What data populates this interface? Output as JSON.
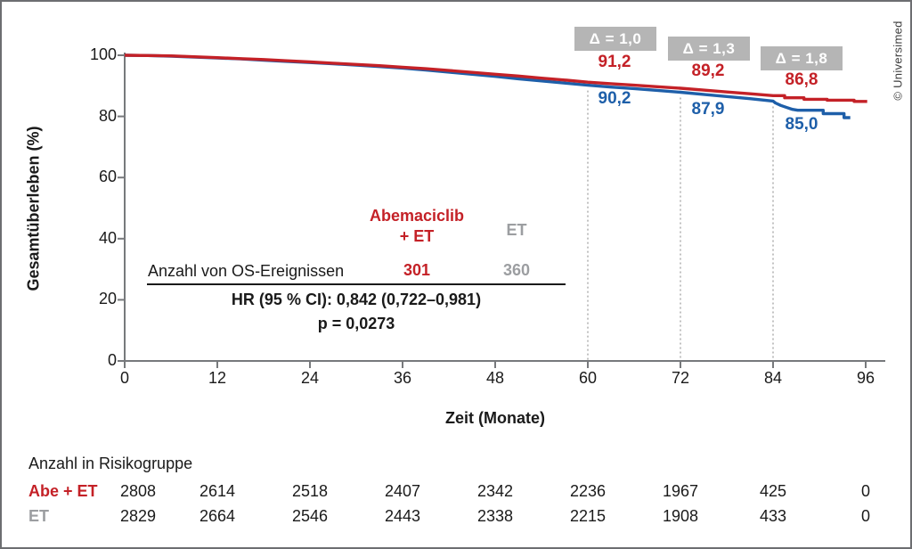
{
  "copyright_label": "© Universimed",
  "chart_data": {
    "type": "line",
    "subtype": "kaplan-meier",
    "title": "",
    "xlabel": "Zeit (Monate)",
    "ylabel": "Gesamtüberleben (%)",
    "xlim": [
      0,
      96
    ],
    "ylim": [
      0,
      100
    ],
    "x_ticks": [
      0,
      12,
      24,
      36,
      48,
      60,
      72,
      84,
      96
    ],
    "y_ticks": [
      0,
      20,
      40,
      60,
      80,
      100
    ],
    "grid": false,
    "legend_position": "none",
    "colors": {
      "abemaciclib": "#c42127",
      "et": "#1e5fa9",
      "muted_gray": "#9c9ea1",
      "delta_box_bg": "#b5b5b5",
      "axis": "#77797c",
      "dotted_line": "#a8a8a8"
    },
    "series": [
      {
        "name": "Abemaciclib + ET",
        "color_key": "abemaciclib",
        "points": [
          [
            0,
            100
          ],
          [
            3,
            99.9
          ],
          [
            6,
            99.8
          ],
          [
            9,
            99.5
          ],
          [
            12,
            99.2
          ],
          [
            15,
            98.9
          ],
          [
            18,
            98.6
          ],
          [
            21,
            98.2
          ],
          [
            24,
            97.8
          ],
          [
            27,
            97.4
          ],
          [
            30,
            97.0
          ],
          [
            33,
            96.6
          ],
          [
            36,
            96.1
          ],
          [
            39,
            95.6
          ],
          [
            42,
            95.0
          ],
          [
            45,
            94.4
          ],
          [
            48,
            93.8
          ],
          [
            51,
            93.2
          ],
          [
            54,
            92.5
          ],
          [
            57,
            91.9
          ],
          [
            60,
            91.2
          ],
          [
            63,
            90.7
          ],
          [
            66,
            90.2
          ],
          [
            69,
            89.7
          ],
          [
            72,
            89.2
          ],
          [
            75,
            88.6
          ],
          [
            78,
            88.0
          ],
          [
            81,
            87.4
          ],
          [
            84,
            86.8
          ],
          [
            85.5,
            86.8
          ],
          [
            85.5,
            86.1
          ],
          [
            88,
            86.1
          ],
          [
            88,
            85.6
          ],
          [
            91,
            85.6
          ],
          [
            91,
            85.3
          ],
          [
            94.5,
            85.3
          ],
          [
            94.5,
            84.9
          ],
          [
            96.2,
            84.9
          ]
        ]
      },
      {
        "name": "ET",
        "color_key": "et",
        "points": [
          [
            0,
            100
          ],
          [
            3,
            99.9
          ],
          [
            6,
            99.7
          ],
          [
            9,
            99.4
          ],
          [
            12,
            99.1
          ],
          [
            15,
            98.8
          ],
          [
            18,
            98.4
          ],
          [
            21,
            98.0
          ],
          [
            24,
            97.6
          ],
          [
            27,
            97.2
          ],
          [
            30,
            96.8
          ],
          [
            33,
            96.3
          ],
          [
            36,
            95.8
          ],
          [
            39,
            95.2
          ],
          [
            42,
            94.5
          ],
          [
            45,
            93.8
          ],
          [
            48,
            93.1
          ],
          [
            51,
            92.3
          ],
          [
            54,
            91.6
          ],
          [
            57,
            90.9
          ],
          [
            60,
            90.2
          ],
          [
            63,
            89.6
          ],
          [
            66,
            89.1
          ],
          [
            69,
            88.5
          ],
          [
            72,
            87.9
          ],
          [
            75,
            87.2
          ],
          [
            78,
            86.5
          ],
          [
            81,
            85.8
          ],
          [
            84,
            85.0
          ],
          [
            84.3,
            84.4
          ],
          [
            85,
            83.6
          ],
          [
            85.8,
            82.9
          ],
          [
            86.5,
            82.3
          ],
          [
            87.2,
            82.0
          ],
          [
            90.5,
            82.0
          ],
          [
            90.5,
            80.9
          ],
          [
            93.2,
            80.9
          ],
          [
            93.2,
            79.6
          ],
          [
            94,
            79.6
          ]
        ]
      }
    ],
    "annotations": [
      {
        "month": 60,
        "delta_label": "Δ = 1,0",
        "abemaciclib_value": "91,2",
        "et_value": "90,2"
      },
      {
        "month": 72,
        "delta_label": "Δ = 1,3",
        "abemaciclib_value": "89,2",
        "et_value": "87,9"
      },
      {
        "month": 84,
        "delta_label": "Δ = 1,8",
        "abemaciclib_value": "86,8",
        "et_value": "85,0"
      }
    ],
    "inset_stats": {
      "col_abemaciclib_header": "Abemaciclib + ET",
      "col_et_header": "ET",
      "events_row_label": "Anzahl von OS-Ereignissen",
      "events_abemaciclib": "301",
      "events_et": "360",
      "hr_line": "HR (95 % CI): 0,842 (0,722–0,981)",
      "p_line": "p = 0,0273"
    },
    "risk_table": {
      "title": "Anzahl in Risikogruppe",
      "rows": [
        {
          "label": "Abe + ET",
          "values": [
            "2808",
            "2614",
            "2518",
            "2407",
            "2342",
            "2236",
            "1967",
            "425",
            "0"
          ]
        },
        {
          "label": "ET",
          "values": [
            "2829",
            "2664",
            "2546",
            "2443",
            "2338",
            "2215",
            "1908",
            "433",
            "0"
          ]
        }
      ]
    }
  }
}
